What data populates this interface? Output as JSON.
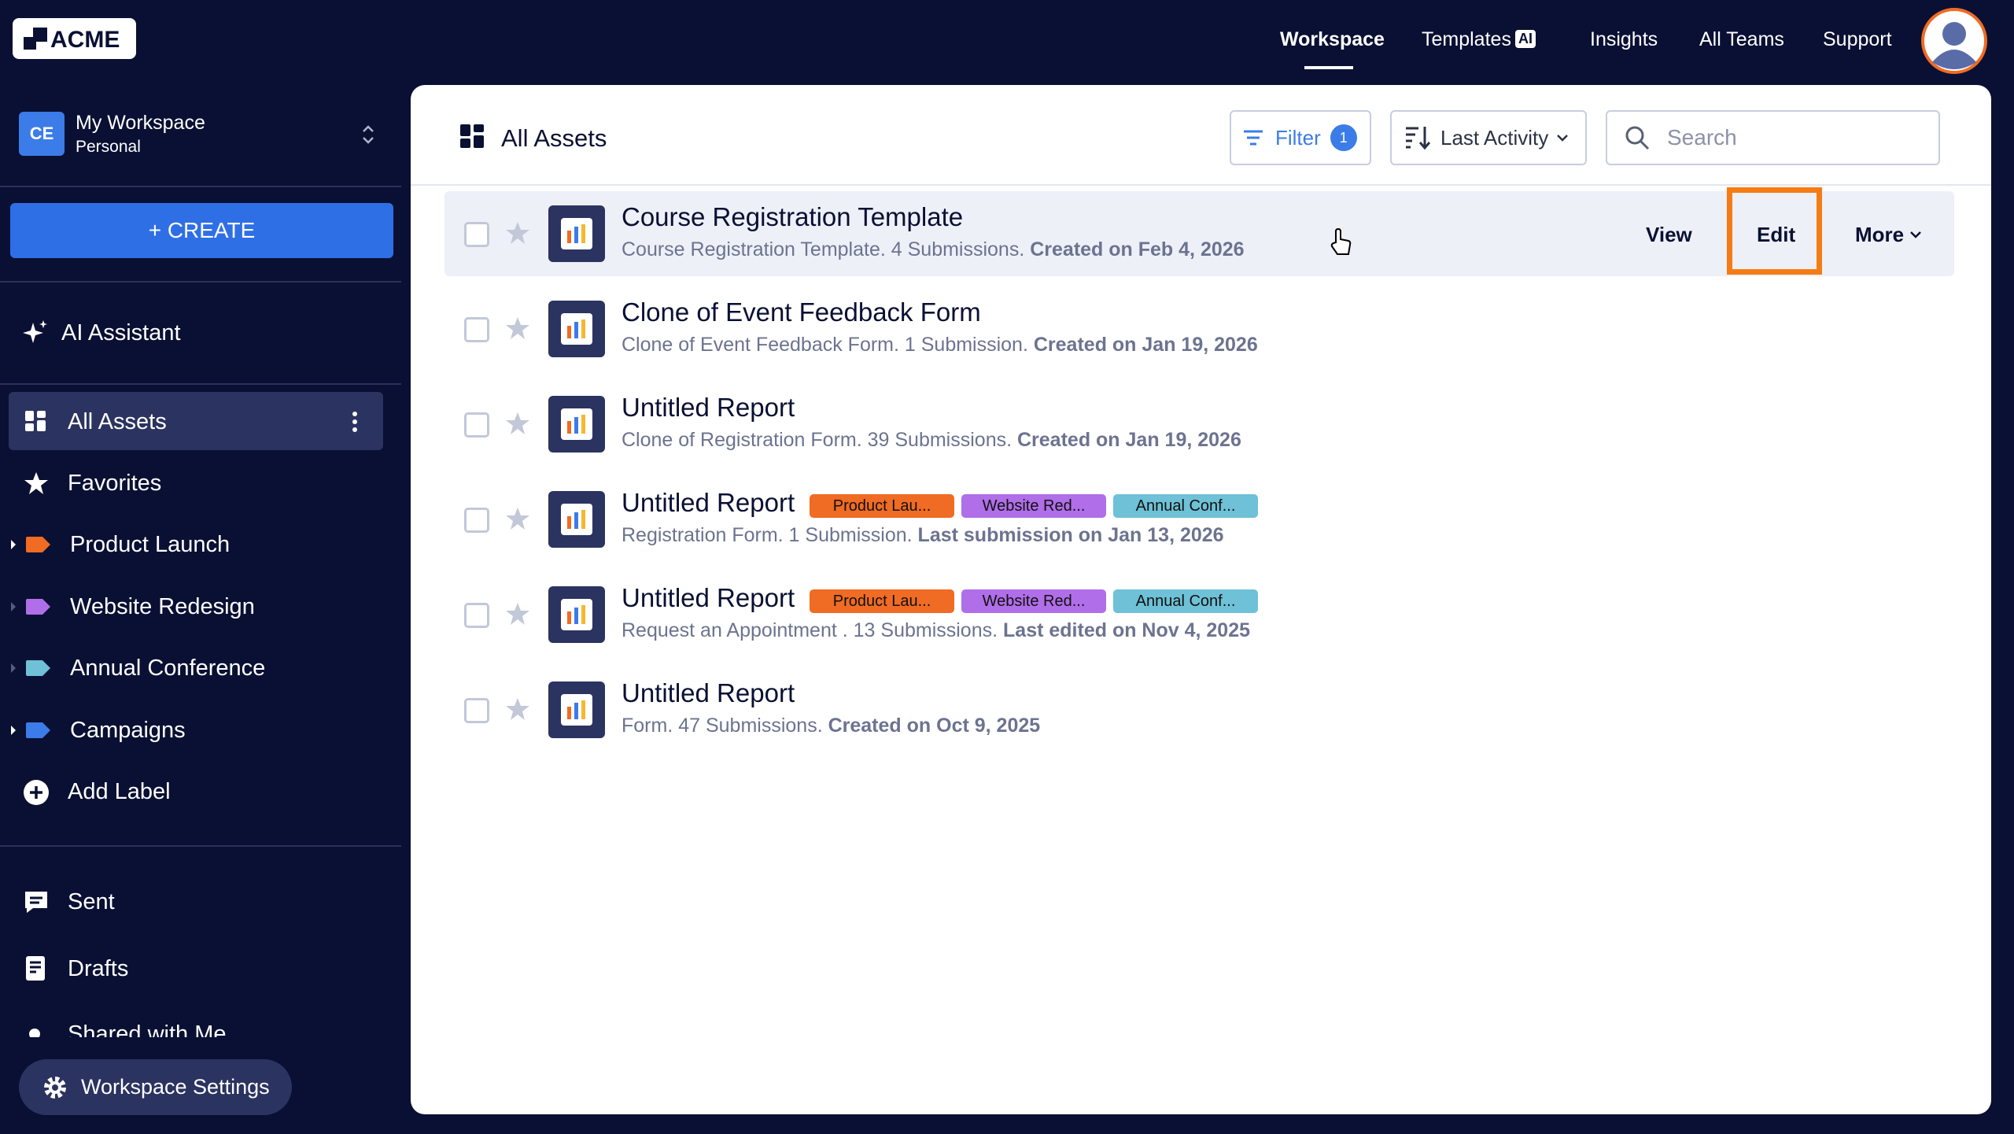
{
  "nav": {
    "logo": "ACME",
    "items": [
      "Workspace",
      "Templates",
      "Insights",
      "All Teams",
      "Support"
    ],
    "ai_badge": "AI"
  },
  "sidebar": {
    "workspace": {
      "initials": "CE",
      "name": "My Workspace",
      "type": "Personal"
    },
    "create": "+ CREATE",
    "ai_assistant": "AI Assistant",
    "all_assets": "All Assets",
    "favorites": "Favorites",
    "labels": [
      {
        "name": "Product Launch",
        "color": "#f06b23"
      },
      {
        "name": "Website Redesign",
        "color": "#b06ee8"
      },
      {
        "name": "Annual Conference",
        "color": "#6ec1d6"
      },
      {
        "name": "Campaigns",
        "color": "#3b7ce8"
      }
    ],
    "add_label": "Add Label",
    "sent": "Sent",
    "drafts": "Drafts",
    "shared": "Shared with Me",
    "settings": "Workspace Settings"
  },
  "main": {
    "title": "All Assets",
    "filter": "Filter",
    "filter_count": "1",
    "sort": "Last Activity",
    "search_placeholder": "Search",
    "actions": {
      "view": "View",
      "edit": "Edit",
      "more": "More"
    },
    "rows": [
      {
        "title": "Course Registration Template",
        "description": "Course Registration Template. 4 Submissions.",
        "date": "Created on Feb 4, 2026",
        "tags": []
      },
      {
        "title": "Clone of Event Feedback Form",
        "description": "Clone of Event Feedback Form. 1 Submission.",
        "date": "Created on Jan 19, 2026",
        "tags": []
      },
      {
        "title": "Untitled Report",
        "description": "Clone of Registration Form. 39 Submissions.",
        "date": "Created on Jan 19, 2026",
        "tags": []
      },
      {
        "title": "Untitled Report",
        "description": "Registration Form. 1 Submission.",
        "date": "Last submission on Jan 13, 2026",
        "tags": [
          "Product Lau...",
          "Website Red...",
          "Annual Conf..."
        ]
      },
      {
        "title": "Untitled Report",
        "description": "Request an Appointment . 13 Submissions.",
        "date": "Last edited on Nov 4, 2025",
        "tags": [
          "Product Lau...",
          "Website Red...",
          "Annual Conf..."
        ]
      },
      {
        "title": "Untitled Report",
        "description": "Form. 47 Submissions.",
        "date": "Created on Oct 9, 2025",
        "tags": []
      }
    ]
  }
}
